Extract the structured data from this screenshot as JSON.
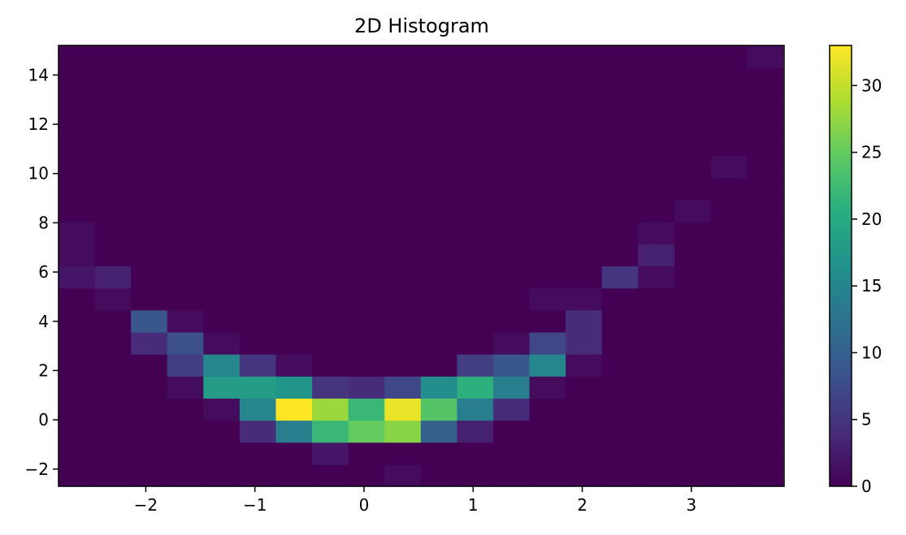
{
  "chart_data": {
    "type": "heatmap",
    "title": "2D Histogram",
    "xlabel": "",
    "ylabel": "",
    "xlim": [
      -2.8,
      3.85
    ],
    "ylim": [
      -2.7,
      15.2
    ],
    "x_edges": [
      -2.8,
      -2.468,
      -2.136,
      -1.804,
      -1.472,
      -1.14,
      -0.808,
      -0.476,
      -0.144,
      0.188,
      0.52,
      0.852,
      1.184,
      1.516,
      1.848,
      2.18,
      2.512,
      2.844,
      3.176,
      3.508,
      3.84
    ],
    "y_edges": [
      -2.7,
      -1.805,
      -0.91,
      -0.015,
      0.88,
      1.775,
      2.67,
      3.565,
      4.46,
      5.355,
      6.25,
      7.145,
      8.04,
      8.935,
      9.83,
      10.725,
      11.62,
      12.515,
      13.41,
      14.305,
      15.2
    ],
    "x_ticks": [
      -2,
      -1,
      0,
      1,
      2,
      3
    ],
    "x_tick_labels": [
      "−2",
      "−1",
      "0",
      "1",
      "2",
      "3"
    ],
    "y_ticks": [
      -2,
      0,
      2,
      4,
      6,
      8,
      10,
      12,
      14
    ],
    "y_tick_labels": [
      "−2",
      "0",
      "2",
      "4",
      "6",
      "8",
      "10",
      "12",
      "14"
    ],
    "counts": [
      [
        0,
        0,
        0,
        0,
        0,
        0,
        0,
        0,
        0,
        1,
        0,
        0,
        0,
        0,
        0,
        0,
        0,
        0,
        0,
        0
      ],
      [
        0,
        0,
        0,
        0,
        0,
        0,
        0,
        2,
        0,
        0,
        0,
        0,
        0,
        0,
        0,
        0,
        0,
        0,
        0,
        0
      ],
      [
        0,
        0,
        0,
        0,
        0,
        4,
        14,
        22,
        25,
        27,
        10,
        3,
        0,
        0,
        0,
        0,
        0,
        0,
        0,
        0
      ],
      [
        0,
        0,
        0,
        0,
        1,
        15,
        33,
        28,
        22,
        32,
        24,
        14,
        4,
        0,
        0,
        0,
        0,
        0,
        0,
        0
      ],
      [
        0,
        0,
        0,
        1,
        18,
        18,
        17,
        5,
        4,
        7,
        16,
        21,
        14,
        1,
        0,
        0,
        0,
        0,
        0,
        0
      ],
      [
        0,
        0,
        0,
        6,
        15,
        5,
        1,
        0,
        0,
        0,
        0,
        6,
        9,
        15,
        1,
        0,
        0,
        0,
        0,
        0
      ],
      [
        0,
        0,
        4,
        8,
        1,
        0,
        0,
        0,
        0,
        0,
        0,
        0,
        1,
        7,
        4,
        0,
        0,
        0,
        0,
        0
      ],
      [
        0,
        0,
        9,
        1,
        0,
        0,
        0,
        0,
        0,
        0,
        0,
        0,
        0,
        0,
        4,
        0,
        0,
        0,
        0,
        0
      ],
      [
        0,
        1,
        0,
        0,
        0,
        0,
        0,
        0,
        0,
        0,
        0,
        0,
        0,
        1,
        1,
        0,
        0,
        0,
        0,
        0
      ],
      [
        2,
        3,
        0,
        0,
        0,
        0,
        0,
        0,
        0,
        0,
        0,
        0,
        0,
        0,
        0,
        5,
        1,
        0,
        0,
        0
      ],
      [
        1,
        0,
        0,
        0,
        0,
        0,
        0,
        0,
        0,
        0,
        0,
        0,
        0,
        0,
        0,
        0,
        3,
        0,
        0,
        0
      ],
      [
        1,
        0,
        0,
        0,
        0,
        0,
        0,
        0,
        0,
        0,
        0,
        0,
        0,
        0,
        0,
        0,
        1,
        0,
        0,
        0
      ],
      [
        0,
        0,
        0,
        0,
        0,
        0,
        0,
        0,
        0,
        0,
        0,
        0,
        0,
        0,
        0,
        0,
        0,
        1,
        0,
        0
      ],
      [
        0,
        0,
        0,
        0,
        0,
        0,
        0,
        0,
        0,
        0,
        0,
        0,
        0,
        0,
        0,
        0,
        0,
        0,
        0,
        0
      ],
      [
        0,
        0,
        0,
        0,
        0,
        0,
        0,
        0,
        0,
        0,
        0,
        0,
        0,
        0,
        0,
        0,
        0,
        0,
        1,
        0
      ],
      [
        0,
        0,
        0,
        0,
        0,
        0,
        0,
        0,
        0,
        0,
        0,
        0,
        0,
        0,
        0,
        0,
        0,
        0,
        0,
        0
      ],
      [
        0,
        0,
        0,
        0,
        0,
        0,
        0,
        0,
        0,
        0,
        0,
        0,
        0,
        0,
        0,
        0,
        0,
        0,
        0,
        0
      ],
      [
        0,
        0,
        0,
        0,
        0,
        0,
        0,
        0,
        0,
        0,
        0,
        0,
        0,
        0,
        0,
        0,
        0,
        0,
        0,
        0
      ],
      [
        0,
        0,
        0,
        0,
        0,
        0,
        0,
        0,
        0,
        0,
        0,
        0,
        0,
        0,
        0,
        0,
        0,
        0,
        0,
        0
      ],
      [
        0,
        0,
        0,
        0,
        0,
        0,
        0,
        0,
        0,
        0,
        0,
        0,
        0,
        0,
        0,
        0,
        0,
        0,
        0,
        1
      ]
    ],
    "colormap": "viridis",
    "colorbar": {
      "vmin": 0,
      "vmax": 33,
      "ticks": [
        0,
        5,
        10,
        15,
        20,
        25,
        30
      ],
      "tick_labels": [
        "0",
        "5",
        "10",
        "15",
        "20",
        "25",
        "30"
      ]
    },
    "grid": false
  }
}
